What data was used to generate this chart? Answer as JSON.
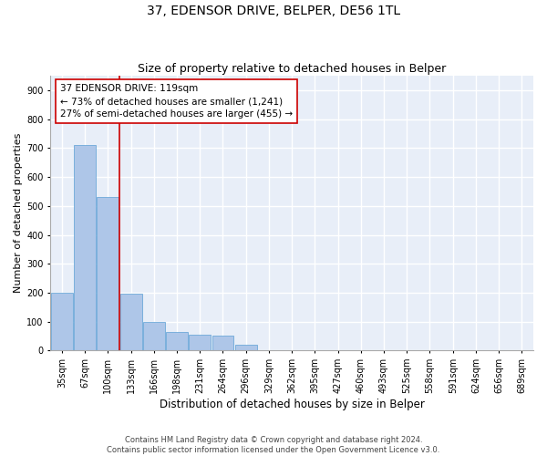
{
  "title": "37, EDENSOR DRIVE, BELPER, DE56 1TL",
  "subtitle": "Size of property relative to detached houses in Belper",
  "xlabel": "Distribution of detached houses by size in Belper",
  "ylabel": "Number of detached properties",
  "categories": [
    "35sqm",
    "67sqm",
    "100sqm",
    "133sqm",
    "166sqm",
    "198sqm",
    "231sqm",
    "264sqm",
    "296sqm",
    "329sqm",
    "362sqm",
    "395sqm",
    "427sqm",
    "460sqm",
    "493sqm",
    "525sqm",
    "558sqm",
    "591sqm",
    "624sqm",
    "656sqm",
    "689sqm"
  ],
  "values": [
    200,
    710,
    530,
    195,
    100,
    65,
    55,
    50,
    20,
    0,
    0,
    0,
    0,
    0,
    0,
    0,
    0,
    0,
    0,
    0,
    0
  ],
  "bar_color": "#aec6e8",
  "bar_edge_color": "#5a9fd4",
  "vline_x": 2.5,
  "vline_color": "#cc0000",
  "annotation_text": "37 EDENSOR DRIVE: 119sqm\n← 73% of detached houses are smaller (1,241)\n27% of semi-detached houses are larger (455) →",
  "annotation_box_color": "#ffffff",
  "annotation_box_edge_color": "#cc0000",
  "ylim": [
    0,
    950
  ],
  "yticks": [
    0,
    100,
    200,
    300,
    400,
    500,
    600,
    700,
    800,
    900
  ],
  "footer_line1": "Contains HM Land Registry data © Crown copyright and database right 2024.",
  "footer_line2": "Contains public sector information licensed under the Open Government Licence v3.0.",
  "bg_color": "#e8eef8",
  "grid_color": "#ffffff",
  "fig_bg_color": "#ffffff",
  "title_fontsize": 10,
  "subtitle_fontsize": 9,
  "tick_fontsize": 7,
  "ylabel_fontsize": 8,
  "xlabel_fontsize": 8.5,
  "annotation_fontsize": 7.5
}
